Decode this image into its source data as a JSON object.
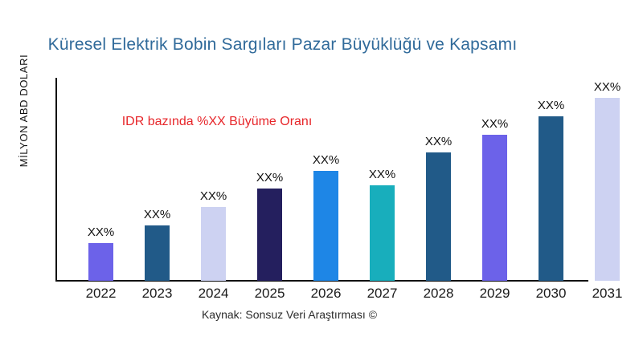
{
  "header": {
    "title": "Küresel Elektrik Bobin Sargıları Pazar Büyüklüğü ve Kapsamı",
    "title_color": "#306a9a"
  },
  "annotation": {
    "text": "IDR bazında %XX Büyüme Oranı",
    "color": "#e7262a"
  },
  "footer": {
    "source": "Kaynak: Sonsuz Veri Araştırması ©"
  },
  "chart_data": {
    "type": "bar",
    "title": "Küresel Elektrik Bobin Sargıları Pazar Büyüklüğü ve Kapsamı",
    "ylabel": "MİLYON ABD DOLARI",
    "xlabel": "",
    "categories": [
      "2022",
      "2023",
      "2024",
      "2025",
      "2026",
      "2027",
      "2028",
      "2029",
      "2030",
      "2031"
    ],
    "values": [
      47,
      69,
      92,
      115,
      137,
      119,
      160,
      182,
      205,
      228
    ],
    "values_note": "numeric values not printed on chart; heights estimated in pixels relative to baseline",
    "value_labels": [
      "XX%",
      "XX%",
      "XX%",
      "XX%",
      "XX%",
      "XX%",
      "XX%",
      "XX%",
      "XX%",
      "XX%"
    ],
    "bar_colors": [
      "#6c62e9",
      "#215a88",
      "#cdd2f2",
      "#241f5e",
      "#1e86e6",
      "#18aebc",
      "#215a88",
      "#6c62e9",
      "#215a88",
      "#cdd2f2"
    ],
    "annotation": "IDR bazında %XX Büyüme Oranı",
    "source": "Kaynak: Sonsuz Veri Araştırması ©",
    "grid": false,
    "legend": false,
    "y_ticks": "none shown",
    "axis_color": "#111111"
  }
}
